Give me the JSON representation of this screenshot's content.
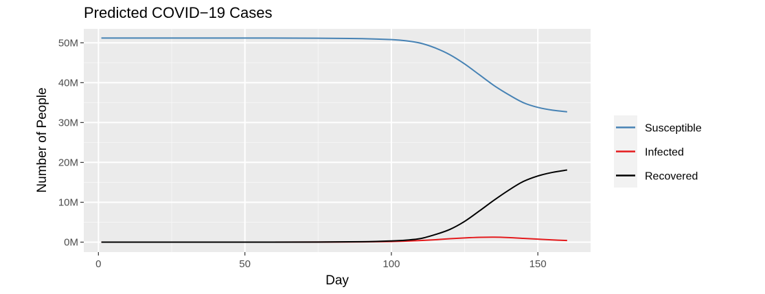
{
  "chart_data": {
    "type": "line",
    "title": "Predicted COVID−19 Cases",
    "xlabel": "Day",
    "ylabel": "Number of People",
    "xlim": [
      -5,
      168
    ],
    "ylim": [
      -2.5,
      53.5
    ],
    "x_ticks": [
      0,
      50,
      100,
      150
    ],
    "x_tick_labels": [
      "0",
      "50",
      "100",
      "150"
    ],
    "y_ticks": [
      0,
      10,
      20,
      30,
      40,
      50
    ],
    "y_tick_labels": [
      "0M",
      "10M",
      "20M",
      "30M",
      "40M",
      "50M"
    ],
    "y_unit_note": "values in millions",
    "grid": true,
    "legend_position": "right",
    "x": [
      1,
      25,
      50,
      75,
      90,
      100,
      105,
      110,
      115,
      120,
      125,
      130,
      135,
      140,
      145,
      150,
      155,
      160
    ],
    "series": [
      {
        "name": "Susceptible",
        "color": "#4682b4",
        "values": [
          51.2,
          51.2,
          51.2,
          51.15,
          51.05,
          50.8,
          50.5,
          49.9,
          48.7,
          47.0,
          44.7,
          42.0,
          39.3,
          37.0,
          35.0,
          33.8,
          33.1,
          32.7
        ]
      },
      {
        "name": "Infected",
        "color": "#e41a1c",
        "values": [
          0,
          0,
          0,
          0.02,
          0.06,
          0.15,
          0.25,
          0.4,
          0.6,
          0.85,
          1.05,
          1.2,
          1.25,
          1.15,
          0.95,
          0.75,
          0.55,
          0.4
        ]
      },
      {
        "name": "Recovered",
        "color": "#000000",
        "values": [
          0,
          0,
          0,
          0.02,
          0.1,
          0.3,
          0.5,
          0.9,
          1.9,
          3.2,
          5.2,
          7.8,
          10.5,
          13.0,
          15.2,
          16.6,
          17.5,
          18.1
        ]
      }
    ]
  }
}
